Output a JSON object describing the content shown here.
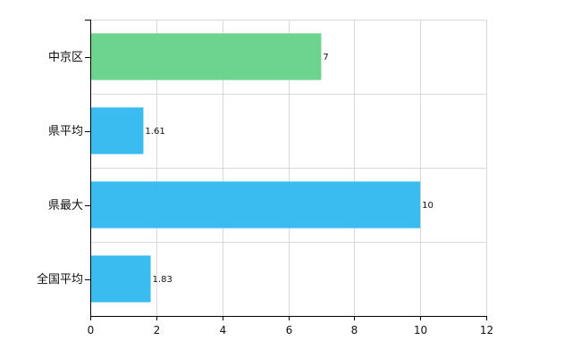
{
  "chart_data": {
    "type": "bar",
    "orientation": "horizontal",
    "categories": [
      "中京区",
      "県平均",
      "県最大",
      "全国平均"
    ],
    "values": [
      7,
      1.61,
      10,
      1.83
    ],
    "data_labels": [
      "7",
      "1.61",
      "10",
      "1.83"
    ],
    "bar_colors": [
      "#6dd48f",
      "#3bbcf0",
      "#3bbcf0",
      "#3bbcf0"
    ],
    "xlim": [
      0,
      12
    ],
    "x_ticks": [
      0,
      2,
      4,
      6,
      8,
      10,
      12
    ],
    "title": "",
    "xlabel": "",
    "ylabel": "",
    "grid": true,
    "grid_color": "#d9d9d9"
  }
}
